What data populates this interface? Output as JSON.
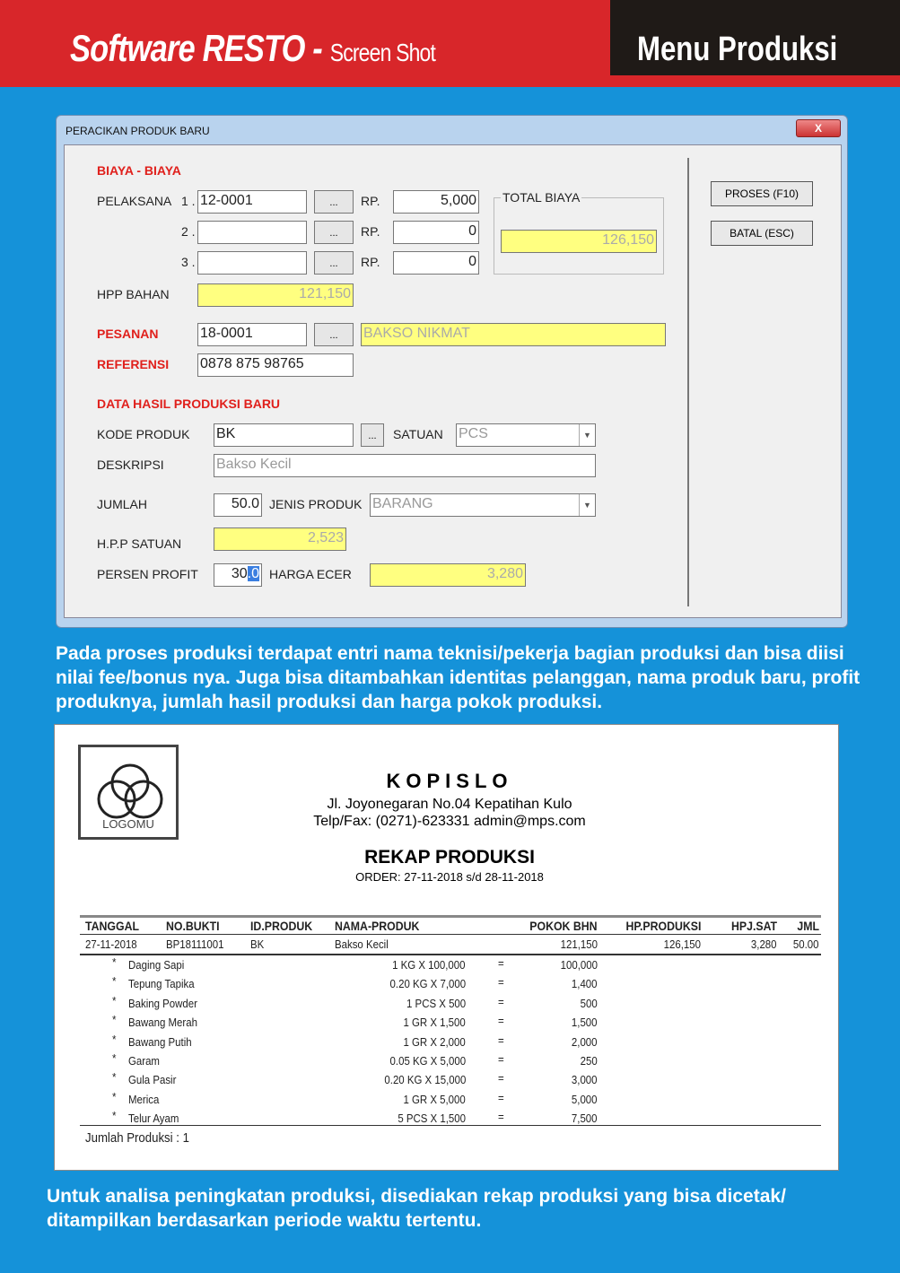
{
  "header": {
    "brand": "Software RESTO",
    "brand_sep": " - ",
    "brand_sub": "Screen Shot",
    "section": "Menu Produksi",
    "colors": {
      "red": "#d8262a",
      "black": "#1f1a17",
      "background": "#1592d9"
    }
  },
  "dialog": {
    "title": "PERACIKAN PRODUK BARU",
    "close": "X",
    "biaya_heading": "BIAYA - BIAYA",
    "pelaksana_label": "PELAKSANA",
    "rows": [
      {
        "num": "1 .",
        "code": "12-0001",
        "rp_label": "RP.",
        "rp": "5,000"
      },
      {
        "num": "2 .",
        "code": "",
        "rp_label": "RP.",
        "rp": "0"
      },
      {
        "num": "3 .",
        "code": "",
        "rp_label": "RP.",
        "rp": "0"
      }
    ],
    "browse": "...",
    "total_biaya_label": "TOTAL BIAYA",
    "total_biaya": "126,150",
    "hpp_bahan_label": "HPP BAHAN",
    "hpp_bahan": "121,150",
    "pesanan_label": "PESANAN",
    "pesanan_code": "18-0001",
    "pesanan_name": "BAKSO NIKMAT",
    "referensi_label": "REFERENSI",
    "referensi": "0878 875 98765",
    "hasil_heading": "DATA HASIL PRODUKSI BARU",
    "kode_label": "KODE PRODUK",
    "kode": "BK",
    "satuan_label": "SATUAN",
    "satuan": "PCS",
    "deskripsi_label": "DESKRIPSI",
    "deskripsi": "Bakso Kecil",
    "jumlah_label": "JUMLAH",
    "jumlah": "50.0",
    "jenis_label": "JENIS PRODUK",
    "jenis": "BARANG",
    "hpp_satuan_label": "H.P.P SATUAN",
    "hpp_satuan": "2,523",
    "persen_label": "PERSEN PROFIT",
    "persen_int": "30",
    "persen_sel": ".0",
    "harga_ecer_label": "HARGA ECER",
    "harga_ecer": "3,280",
    "proses_button": "PROSES  (F10)",
    "batal_button": "BATAL (ESC)"
  },
  "para1": "Pada proses produksi terdapat entri nama teknisi/pekerja bagian produksi dan bisa diisi nilai fee/bonus nya. Juga bisa ditambahkan  identitas pelanggan, nama produk baru, profit produknya, jumlah hasil produksi dan harga pokok produksi.",
  "report": {
    "logo": "LOGOMU",
    "company": "KOPISLO",
    "address": "Jl. Joyonegaran No.04 Kepatihan Kulo",
    "contact": "Telp/Fax: (0271)-623331 admin@mps.com",
    "title": "REKAP PRODUKSI",
    "period": "ORDER: 27-11-2018 s/d 28-11-2018",
    "columns": [
      "TANGGAL",
      "NO.BUKTI",
      "ID.PRODUK",
      "NAMA-PRODUK",
      "POKOK BHN",
      "HP.PRODUKSI",
      "HPJ.SAT",
      "JML"
    ],
    "row": [
      "27-11-2018",
      "BP18111001",
      "BK",
      "Bakso Kecil",
      "121,150",
      "126,150",
      "3,280",
      "50.00"
    ],
    "items": [
      {
        "name": "Daging Sapi",
        "qty": "1 KG  X 100,000",
        "total": "100,000"
      },
      {
        "name": "Tepung Tapika",
        "qty": "0.20 KG  X 7,000",
        "total": "1,400"
      },
      {
        "name": "Baking Powder",
        "qty": "1 PCS  X 500",
        "total": "500"
      },
      {
        "name": "Bawang Merah",
        "qty": "1 GR  X 1,500",
        "total": "1,500"
      },
      {
        "name": "Bawang Putih",
        "qty": "1 GR  X 2,000",
        "total": "2,000"
      },
      {
        "name": "Garam",
        "qty": "0.05 KG  X 5,000",
        "total": "250"
      },
      {
        "name": "Gula Pasir",
        "qty": "0.20 KG  X 15,000",
        "total": "3,000"
      },
      {
        "name": "Merica",
        "qty": "1 GR  X 5,000",
        "total": "5,000"
      },
      {
        "name": "Telur Ayam",
        "qty": "5 PCS  X 1,500",
        "total": "7,500"
      }
    ],
    "bullet": "*",
    "eq": "=",
    "footer": "Jumlah Produksi : 1"
  },
  "para2": "Untuk analisa peningkatan produksi, disediakan rekap produksi yang bisa dicetak/ ditampilkan berdasarkan periode waktu tertentu."
}
